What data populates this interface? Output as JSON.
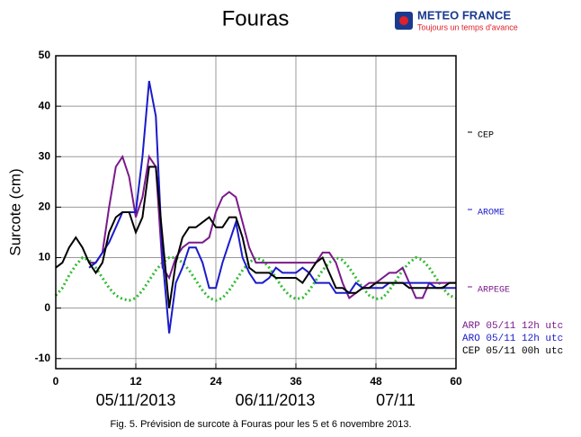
{
  "logo": {
    "name": "METEO FRANCE",
    "tagline": "Toujours un temps d'avance"
  },
  "caption": "Fig. 5. Prévision de surcote à Fouras pour les 5 et 6 novembre 2013.",
  "chart_data": {
    "type": "line",
    "title": "Fouras",
    "y_label": "Surcote (cm)",
    "date_labels": [
      "05/11/2013",
      "06/11/2013",
      "07/11"
    ],
    "model_labels": [
      {
        "text": "CEP",
        "color": "#000000"
      },
      {
        "text": "AROME",
        "color": "#1a1acc"
      },
      {
        "text": "ARPEGE",
        "color": "#7a1a8a"
      }
    ],
    "xlim": [
      0,
      60
    ],
    "xticks": [
      0,
      12,
      24,
      36,
      48,
      60
    ],
    "ylim": [
      -12,
      50
    ],
    "yticks": [
      -10,
      0,
      10,
      20,
      30,
      40,
      50
    ],
    "grid": true,
    "x": [
      0,
      1,
      2,
      3,
      4,
      5,
      6,
      7,
      8,
      9,
      10,
      11,
      12,
      13,
      14,
      15,
      16,
      17,
      18,
      19,
      20,
      21,
      22,
      23,
      24,
      25,
      26,
      27,
      28,
      29,
      30,
      31,
      32,
      33,
      34,
      35,
      36,
      37,
      38,
      39,
      40,
      41,
      42,
      43,
      44,
      45,
      46,
      47,
      48,
      49,
      50,
      51,
      52,
      53,
      54,
      55,
      56,
      57,
      58,
      59,
      60
    ],
    "series": [
      {
        "name": "ARP 05/11 12h utc",
        "color": "#7a1a8a",
        "values": [
          null,
          null,
          null,
          null,
          null,
          9,
          9,
          11,
          20,
          28,
          30,
          26,
          18,
          22,
          30,
          28,
          8,
          6,
          10,
          12,
          13,
          13,
          13,
          14,
          19,
          22,
          23,
          22,
          17,
          12,
          9,
          9,
          9,
          9,
          9,
          9,
          9,
          9,
          9,
          9,
          11,
          11,
          9,
          5,
          2,
          3,
          4,
          5,
          5,
          6,
          7,
          7,
          8,
          5,
          2,
          2,
          5,
          5,
          5,
          5,
          5
        ]
      },
      {
        "name": "ARO 05/11 12h utc",
        "color": "#1a1acc",
        "values": [
          null,
          null,
          null,
          null,
          null,
          8,
          9,
          11,
          13,
          16,
          19,
          19,
          19,
          30,
          45,
          38,
          10,
          -5,
          5,
          8,
          12,
          12,
          9,
          4,
          4,
          9,
          13,
          17,
          10,
          7,
          5,
          5,
          6,
          8,
          7,
          7,
          7,
          8,
          7,
          5,
          5,
          5,
          3,
          3,
          3,
          5,
          4,
          4,
          4,
          4,
          5,
          5,
          5,
          5,
          5,
          5,
          5,
          4,
          4,
          4,
          4
        ]
      },
      {
        "name": "CEP 05/11 00h utc",
        "color": "#000000",
        "values": [
          8,
          9,
          12,
          14,
          12,
          9,
          7,
          9,
          15,
          18,
          19,
          19,
          15,
          18,
          28,
          28,
          14,
          0,
          9,
          14,
          16,
          16,
          17,
          18,
          16,
          16,
          18,
          18,
          14,
          8,
          7,
          7,
          7,
          6,
          6,
          6,
          6,
          5,
          7,
          9,
          10,
          7,
          4,
          4,
          3,
          3,
          4,
          4,
          5,
          5,
          5,
          5,
          5,
          4,
          4,
          4,
          4,
          4,
          4,
          5,
          5
        ]
      }
    ],
    "tide": {
      "color": "#33bb33",
      "values": [
        2.5,
        4,
        6.5,
        8.5,
        10,
        9.5,
        8,
        6,
        4,
        2.5,
        1.8,
        1.5,
        2,
        3.5,
        5.5,
        7.5,
        9,
        10,
        10,
        9,
        7.5,
        5.5,
        3.5,
        2,
        1.5,
        2,
        3.5,
        5.5,
        7.5,
        9,
        10,
        9.5,
        8,
        6,
        4,
        2.5,
        1.8,
        2,
        3.5,
        5.5,
        7.5,
        9,
        10,
        9.5,
        8,
        6,
        4,
        2.5,
        1.8,
        2,
        3.5,
        5.5,
        7.5,
        9,
        10,
        9.5,
        8,
        6,
        4,
        2.5,
        2
      ]
    }
  }
}
